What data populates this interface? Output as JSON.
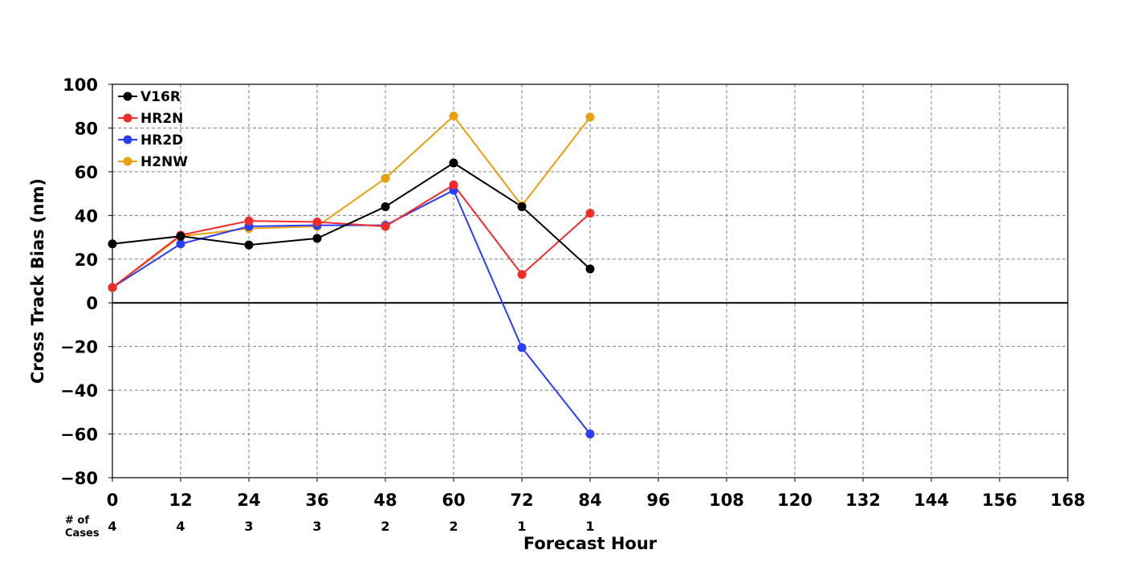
{
  "chart_data": {
    "type": "line",
    "title": "",
    "xlabel": "Forecast Hour",
    "ylabel": "Cross Track Bias (nm)",
    "xlim": [
      0,
      168
    ],
    "ylim": [
      -80,
      100
    ],
    "xticks": [
      "0",
      "12",
      "24",
      "36",
      "48",
      "60",
      "72",
      "84",
      "96",
      "108",
      "120",
      "132",
      "144",
      "156",
      "168"
    ],
    "yticks": [
      "100",
      "80",
      "60",
      "40",
      "20",
      "0",
      "−20",
      "−40",
      "−60",
      "−80"
    ],
    "grid": true,
    "legend_position": "top-left",
    "cases_label_line1": "# of",
    "cases_label_line2": "Cases",
    "cases": [
      {
        "x": 0,
        "n": "4"
      },
      {
        "x": 12,
        "n": "4"
      },
      {
        "x": 24,
        "n": "3"
      },
      {
        "x": 36,
        "n": "3"
      },
      {
        "x": 48,
        "n": "2"
      },
      {
        "x": 60,
        "n": "2"
      },
      {
        "x": 72,
        "n": "1"
      },
      {
        "x": 84,
        "n": "1"
      }
    ],
    "x": [
      0,
      12,
      24,
      36,
      48,
      60,
      72,
      84
    ],
    "series": [
      {
        "name": "V16R",
        "color": "#000000",
        "values": [
          27,
          30.5,
          26.5,
          29.5,
          44,
          64,
          44,
          15.5
        ]
      },
      {
        "name": "HR2N",
        "color": "#f52a2a",
        "values": [
          7,
          31,
          37.5,
          37,
          35,
          54,
          13,
          41
        ]
      },
      {
        "name": "HR2D",
        "color": "#2a3ef5",
        "values": [
          7,
          27,
          35,
          35.5,
          35.5,
          51.5,
          -20.5,
          -60
        ]
      },
      {
        "name": "H2NW",
        "color": "#e8a010",
        "values": [
          7,
          30.5,
          34,
          35,
          57,
          85.5,
          44.5,
          85
        ]
      }
    ]
  }
}
